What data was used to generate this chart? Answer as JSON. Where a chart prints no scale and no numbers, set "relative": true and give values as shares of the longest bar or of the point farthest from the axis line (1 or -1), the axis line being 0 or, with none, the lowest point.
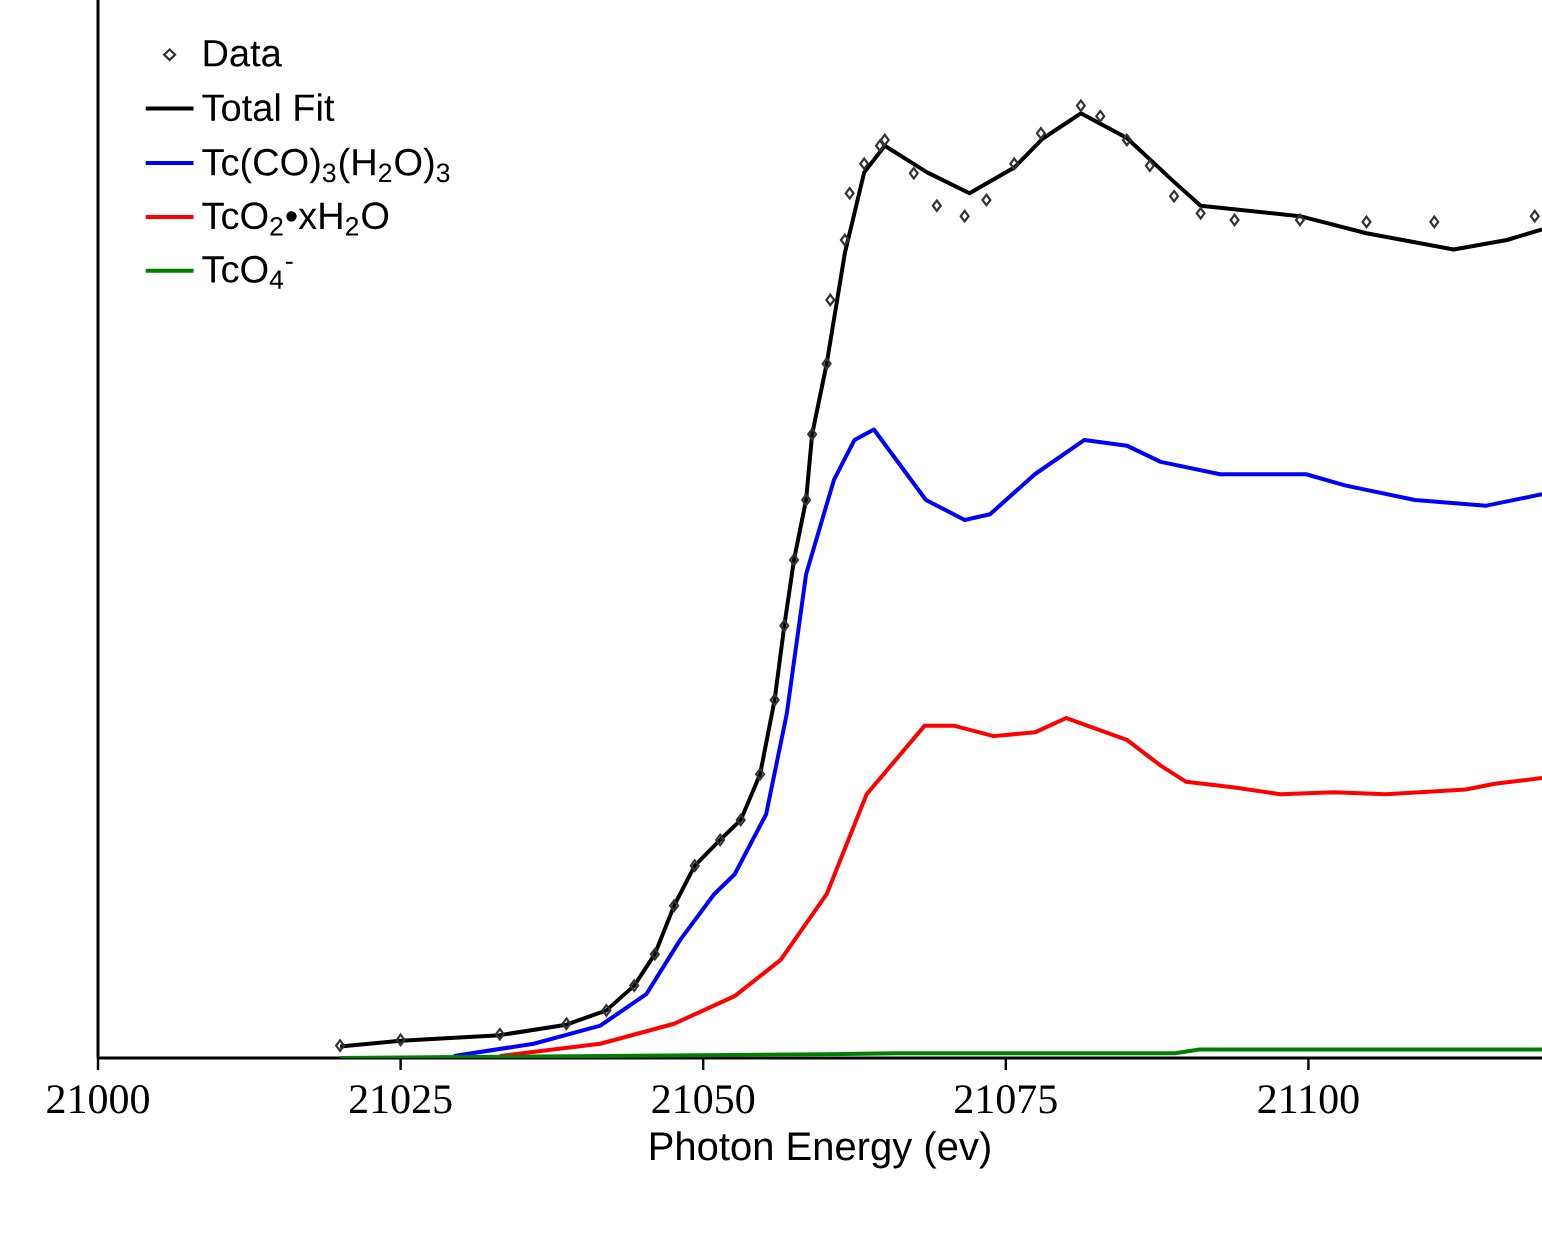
{
  "chart_data": {
    "type": "line",
    "xlabel": "Photon Energy (ev)",
    "relative": true,
    "xlim": [
      21000,
      21119.3
    ],
    "xticks": [
      21000,
      21025,
      21050,
      21075,
      21100
    ],
    "legend": "top left",
    "series": [
      {
        "name": "Data",
        "type": "scatter",
        "marker": "diamond",
        "color": "#333333",
        "x": [
          21020,
          21025,
          21033.2,
          21038.7,
          21042,
          21044.3,
          21046,
          21047.6,
          21049.3,
          21051.4,
          21053.1,
          21054.7,
          21055.9,
          21056.7,
          21057.5,
          21058.5,
          21059,
          21060.2,
          21060.5,
          21061.7,
          21062.1,
          21063.3,
          21064.6,
          21065,
          21067.4,
          21069.3,
          21071.6,
          21073.4,
          21075.7,
          21077.9,
          21081.2,
          21082.8,
          21085,
          21086.9,
          21088.9,
          21091.1,
          21093.9,
          21099.3,
          21104.8,
          21110.4,
          21118.7
        ],
        "values": [
          0.013,
          0.019,
          0.025,
          0.036,
          0.05,
          0.076,
          0.109,
          0.16,
          0.202,
          0.229,
          0.25,
          0.298,
          0.376,
          0.454,
          0.523,
          0.586,
          0.655,
          0.729,
          0.796,
          0.859,
          0.908,
          0.939,
          0.958,
          0.964,
          0.929,
          0.895,
          0.884,
          0.901,
          0.939,
          0.971,
          1,
          0.989,
          0.964,
          0.937,
          0.905,
          0.887,
          0.88,
          0.88,
          0.878,
          0.878,
          0.884
        ]
      },
      {
        "name": "Total Fit",
        "color": "#000000",
        "x": [
          21020,
          21025,
          21033.2,
          21038.7,
          21042,
          21044.3,
          21046,
          21047.6,
          21049.3,
          21051.4,
          21053.1,
          21054.7,
          21055.9,
          21056.7,
          21057.5,
          21058.5,
          21059,
          21060.2,
          21061.7,
          21063.3,
          21065,
          21068.5,
          21072,
          21075.7,
          21078,
          21081.2,
          21085,
          21088.9,
          21091.1,
          21099.3,
          21104.8,
          21112,
          21116.4,
          21119.3
        ],
        "values": [
          0.012,
          0.018,
          0.024,
          0.035,
          0.05,
          0.076,
          0.109,
          0.16,
          0.202,
          0.229,
          0.25,
          0.298,
          0.376,
          0.454,
          0.523,
          0.586,
          0.655,
          0.729,
          0.845,
          0.93,
          0.958,
          0.93,
          0.908,
          0.935,
          0.965,
          0.992,
          0.966,
          0.92,
          0.895,
          0.884,
          0.866,
          0.849,
          0.859,
          0.87
        ]
      },
      {
        "name": "Tc(CO)$_{3}$(H$_{2}$O)$_{3}$",
        "color": "#0000ff",
        "x": [
          21029.4,
          21036,
          21041.5,
          21045.3,
          21048.1,
          21050.9,
          21052.6,
          21055.2,
          21056.9,
          21058.5,
          21060.8,
          21062.5,
          21064.1,
          21068.4,
          21071.6,
          21073.7,
          21077.4,
          21081.5,
          21085,
          21087.8,
          21092.7,
          21099.8,
          21103.1,
          21108.8,
          21114.7,
          21119.3
        ],
        "values": [
          0.002,
          0.015,
          0.034,
          0.067,
          0.124,
          0.172,
          0.193,
          0.256,
          0.361,
          0.508,
          0.607,
          0.649,
          0.66,
          0.586,
          0.565,
          0.571,
          0.613,
          0.649,
          0.643,
          0.626,
          0.613,
          0.613,
          0.601,
          0.586,
          0.58,
          0.592
        ]
      },
      {
        "name": "TcO$_{2}$•xH$_{2}$O",
        "color": "#ff0000",
        "x": [
          21033.2,
          21041.5,
          21047.6,
          21052.6,
          21056.4,
          21060.2,
          21063.5,
          21068.3,
          21070.7,
          21074,
          21077.4,
          21080,
          21085,
          21087.8,
          21089.9,
          21093.9,
          21097.7,
          21102.1,
          21106.4,
          21113,
          21115.4,
          21119.3
        ],
        "values": [
          0.002,
          0.015,
          0.036,
          0.065,
          0.103,
          0.172,
          0.277,
          0.349,
          0.349,
          0.338,
          0.342,
          0.357,
          0.334,
          0.307,
          0.29,
          0.284,
          0.277,
          0.279,
          0.277,
          0.282,
          0.288,
          0.294
        ]
      },
      {
        "name": "TcO$_{4}$$^{-}$",
        "color": "#008000",
        "x": [
          21020,
          21030,
          21060,
          21066,
          21089,
          21091,
          21119.3
        ],
        "values": [
          0.0,
          0.001,
          0.004,
          0.005,
          0.005,
          0.009,
          0.009
        ]
      }
    ]
  }
}
